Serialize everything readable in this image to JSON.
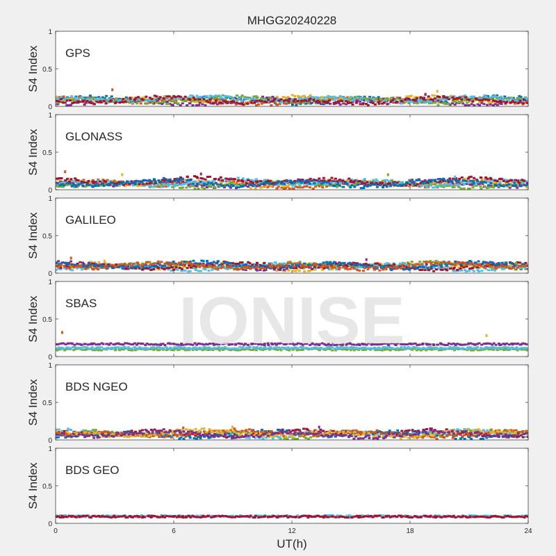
{
  "figure": {
    "title": "MHGG20240228",
    "xlabel": "UT(h)",
    "xticks": [
      "0",
      "6",
      "12",
      "18",
      "24"
    ],
    "watermark": "IONISE"
  },
  "colors": {
    "series": [
      "#0072BD",
      "#D95319",
      "#EDB120",
      "#7E2F8E",
      "#77AC30",
      "#4DBEEE",
      "#A2142F"
    ],
    "background": "#f0f0f0",
    "axes": "#ffffff",
    "watermark": "#e3e3e3"
  },
  "chart_data": [
    {
      "type": "scatter",
      "label": "GPS",
      "ylabel": "S4 Index",
      "xlim": [
        0,
        24
      ],
      "ylim": [
        0,
        1
      ],
      "yticks": [
        "0",
        "0.5",
        "1"
      ],
      "series_levels": [
        0.08,
        0.07,
        0.09,
        0.06,
        0.08,
        0.09,
        0.07
      ],
      "spikes": [
        [
          2.9,
          0.22
        ],
        [
          19.4,
          0.2
        ],
        [
          18.8,
          0.16
        ]
      ]
    },
    {
      "type": "scatter",
      "label": "GLONASS",
      "ylabel": "S4 Index",
      "xlim": [
        0,
        24
      ],
      "ylim": [
        0,
        1
      ],
      "yticks": [
        "0",
        "0.5",
        "1"
      ],
      "series_levels": [
        0.07,
        0.08,
        0.08,
        0.07,
        0.09,
        0.11,
        0.08
      ],
      "spikes": [
        [
          0.5,
          0.24
        ],
        [
          3.4,
          0.2
        ],
        [
          7.4,
          0.21
        ],
        [
          16.9,
          0.2
        ],
        [
          20.3,
          0.17
        ]
      ]
    },
    {
      "type": "scatter",
      "label": "GALILEO",
      "ylabel": "S4 Index",
      "xlim": [
        0,
        24
      ],
      "ylim": [
        0,
        1
      ],
      "yticks": [
        "0",
        "0.5",
        "1"
      ],
      "series_levels": [
        0.08,
        0.09,
        0.1,
        0.08,
        0.09,
        0.1,
        0.09
      ],
      "spikes": [
        [
          0.8,
          0.2
        ],
        [
          2.5,
          0.16
        ],
        [
          15.8,
          0.18
        ],
        [
          23.4,
          0.13
        ]
      ]
    },
    {
      "type": "scatter",
      "label": "SBAS",
      "ylabel": "S4 Index",
      "xlim": [
        0,
        24
      ],
      "ylim": [
        0,
        1
      ],
      "yticks": [
        "0",
        "0.5",
        "1"
      ],
      "series_levels": [
        0.16,
        0.09,
        0.11
      ],
      "spikes": [
        [
          0.35,
          0.32
        ],
        [
          21.9,
          0.28
        ]
      ]
    },
    {
      "type": "scatter",
      "label": "BDS NGEO",
      "ylabel": "S4 Index",
      "xlim": [
        0,
        24
      ],
      "ylim": [
        0,
        1
      ],
      "yticks": [
        "0",
        "0.5",
        "1"
      ],
      "series_levels": [
        0.07,
        0.08,
        0.09,
        0.07,
        0.08,
        0.08,
        0.07
      ],
      "spikes": [
        [
          6.5,
          0.16
        ],
        [
          9.0,
          0.17
        ],
        [
          13.4,
          0.17
        ],
        [
          21.1,
          0.12
        ]
      ]
    },
    {
      "type": "scatter",
      "label": "BDS GEO",
      "ylabel": "S4 Index",
      "xlim": [
        0,
        24
      ],
      "ylim": [
        0,
        1
      ],
      "yticks": [
        "0",
        "0.5",
        "1"
      ],
      "series_levels": [
        0.09,
        0.085
      ],
      "spikes": []
    }
  ]
}
